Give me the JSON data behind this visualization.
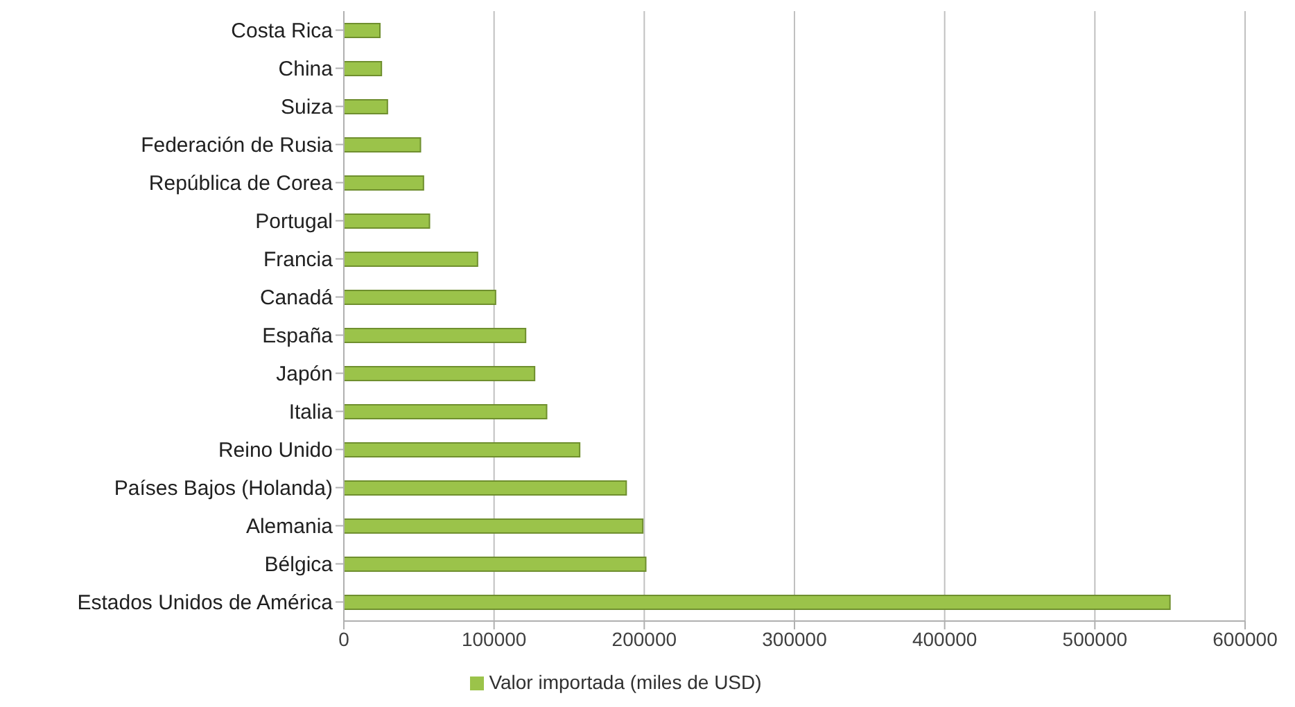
{
  "chart_data": {
    "type": "bar",
    "orientation": "horizontal",
    "categories": [
      "Costa Rica",
      "China",
      "Suiza",
      "Federación de Rusia",
      "República de Corea",
      "Portugal",
      "Francia",
      "Canadá",
      "España",
      "Japón",
      "Italia",
      "Reino Unido",
      "Países Bajos (Holanda)",
      "Alemania",
      "Bélgica",
      "Estados Unidos de América"
    ],
    "series": [
      {
        "name": "Valor importada (miles de USD)",
        "color": "#9bc34a",
        "values": [
          24000,
          25000,
          29000,
          51000,
          53000,
          57000,
          89000,
          101000,
          121000,
          127000,
          135000,
          157000,
          188000,
          199000,
          201000,
          550000
        ]
      }
    ],
    "xlim": [
      0,
      600000
    ],
    "xticks": [
      0,
      100000,
      200000,
      300000,
      400000,
      500000,
      600000
    ],
    "grid": "x",
    "legend": "bottom"
  }
}
